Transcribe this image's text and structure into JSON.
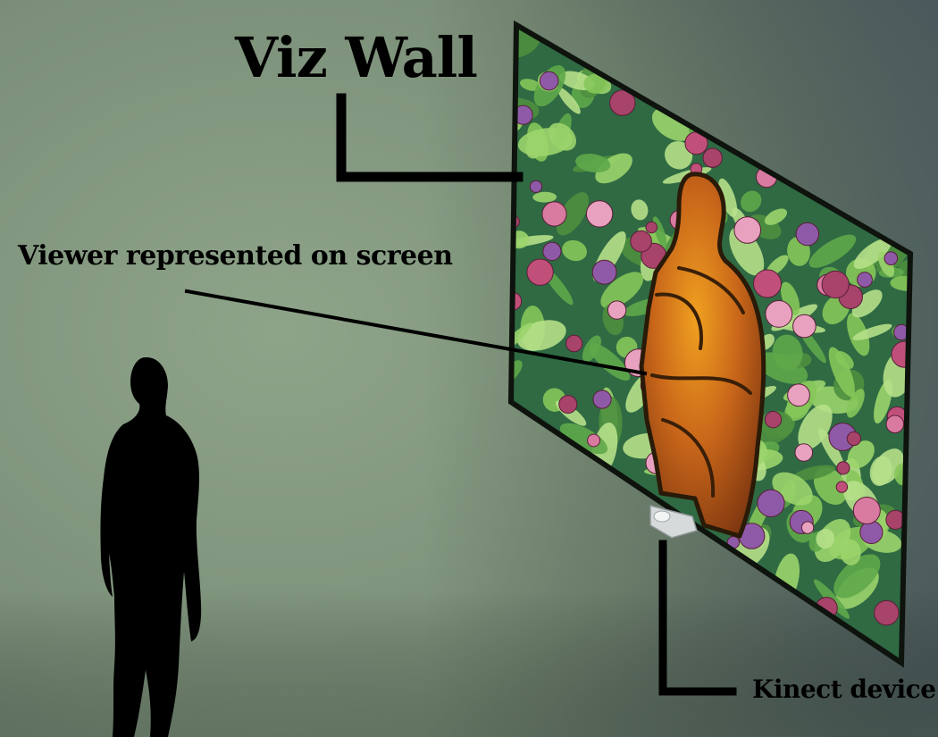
{
  "title": "Viz Wall",
  "callouts": {
    "viewer": "Viewer represented on screen",
    "kinect": "Kinect device"
  },
  "colors": {
    "room_wall": "#7f917d",
    "screen_background": "#2f6a43",
    "foliage_green": "#86c75a",
    "flower_pink": "#c0507a",
    "figure_orange": "#c8661a",
    "silhouette": "#000000",
    "leader_lines": "#000000"
  }
}
